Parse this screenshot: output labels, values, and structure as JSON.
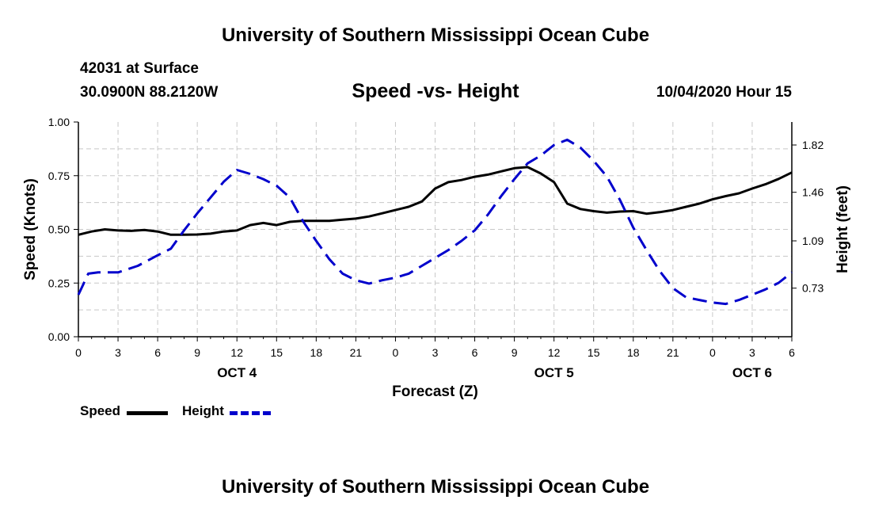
{
  "header": {
    "title": "University of Southern Mississippi Ocean Cube",
    "station": "42031 at Surface",
    "coords": "30.0900N 88.2120W",
    "chart_title": "Speed -vs- Height",
    "datetime": "10/04/2020 Hour 15"
  },
  "footer": {
    "title": "University of Southern Mississippi Ocean Cube"
  },
  "legend": {
    "speed_label": "Speed",
    "height_label": "Height"
  },
  "colors": {
    "speed": "#000000",
    "height": "#0000cc",
    "grid": "#c8c8c8"
  },
  "chart_data": {
    "type": "line",
    "title": "Speed -vs- Height",
    "xlabel": "Forecast (Z)",
    "ylabel": "Speed (Knots)",
    "y2label": "Height (feet)",
    "xlim": [
      0,
      54
    ],
    "ylim": [
      0,
      1
    ],
    "y2lim": [
      0.36,
      1.995
    ],
    "x_ticks": [
      0,
      3,
      6,
      9,
      12,
      15,
      18,
      21,
      24,
      27,
      30,
      33,
      36,
      39,
      42,
      45,
      48,
      51,
      54
    ],
    "x_tick_labels": [
      "0",
      "3",
      "6",
      "9",
      "12",
      "15",
      "18",
      "21",
      "0",
      "3",
      "6",
      "9",
      "12",
      "15",
      "18",
      "21",
      "0",
      "3",
      "6"
    ],
    "day_labels": [
      {
        "x": 12,
        "label": "OCT 4"
      },
      {
        "x": 36,
        "label": "OCT 5"
      },
      {
        "x": 51,
        "label": "OCT 6"
      }
    ],
    "y_ticks": [
      0,
      0.25,
      0.5,
      0.75,
      1.0
    ],
    "y_tick_labels": [
      "0.00",
      "0.25",
      "0.50",
      "0.75",
      "1.00"
    ],
    "y2_ticks": [
      0.73,
      1.09,
      1.46,
      1.82
    ],
    "y2_tick_labels": [
      "0.73",
      "1.09",
      "1.46",
      "1.82"
    ],
    "grid": true,
    "legend_position": "bottom-left",
    "series": [
      {
        "name": "Speed",
        "axis": "left",
        "style": "solid",
        "x": [
          0,
          1,
          2,
          3,
          4,
          5,
          6,
          7,
          8,
          9,
          10,
          11,
          12,
          13,
          14,
          15,
          16,
          17,
          18,
          19,
          20,
          21,
          22,
          23,
          24,
          25,
          26,
          27,
          28,
          29,
          30,
          31,
          32,
          33,
          34,
          35,
          36,
          37,
          38,
          39,
          40,
          41,
          42,
          43,
          44,
          45,
          46,
          47,
          48,
          49,
          50,
          51,
          52,
          53,
          54
        ],
        "y": [
          0.475,
          0.49,
          0.5,
          0.495,
          0.493,
          0.497,
          0.49,
          0.475,
          0.475,
          0.476,
          0.48,
          0.49,
          0.495,
          0.52,
          0.53,
          0.52,
          0.535,
          0.54,
          0.54,
          0.54,
          0.545,
          0.55,
          0.56,
          0.575,
          0.59,
          0.605,
          0.63,
          0.69,
          0.72,
          0.73,
          0.745,
          0.755,
          0.77,
          0.785,
          0.79,
          0.76,
          0.72,
          0.62,
          0.595,
          0.585,
          0.578,
          0.583,
          0.585,
          0.573,
          0.58,
          0.59,
          0.605,
          0.62,
          0.64,
          0.655,
          0.668,
          0.69,
          0.71,
          0.735,
          0.765
        ]
      },
      {
        "name": "Height",
        "axis": "right",
        "style": "dashed",
        "x": [
          0,
          0.75,
          1.5,
          3,
          4.5,
          6,
          7,
          8,
          9,
          10,
          11,
          12,
          13,
          14,
          15,
          16,
          17,
          18,
          19,
          20,
          21,
          22,
          23,
          24,
          25,
          26,
          27,
          28,
          29,
          30,
          31,
          32,
          33,
          34,
          35,
          36,
          37,
          38,
          39,
          40,
          41,
          42,
          43,
          44,
          45,
          46,
          47,
          48,
          49,
          50,
          51,
          52,
          53,
          54
        ],
        "y": [
          0.68,
          0.84,
          0.85,
          0.85,
          0.9,
          0.98,
          1.03,
          1.17,
          1.3,
          1.42,
          1.54,
          1.63,
          1.6,
          1.56,
          1.51,
          1.42,
          1.24,
          1.09,
          0.95,
          0.84,
          0.79,
          0.765,
          0.79,
          0.81,
          0.84,
          0.9,
          0.96,
          1.02,
          1.09,
          1.17,
          1.29,
          1.43,
          1.56,
          1.68,
          1.74,
          1.82,
          1.86,
          1.8,
          1.7,
          1.58,
          1.4,
          1.19,
          1.02,
          0.86,
          0.73,
          0.66,
          0.64,
          0.62,
          0.61,
          0.64,
          0.68,
          0.72,
          0.77,
          0.85
        ]
      }
    ]
  }
}
